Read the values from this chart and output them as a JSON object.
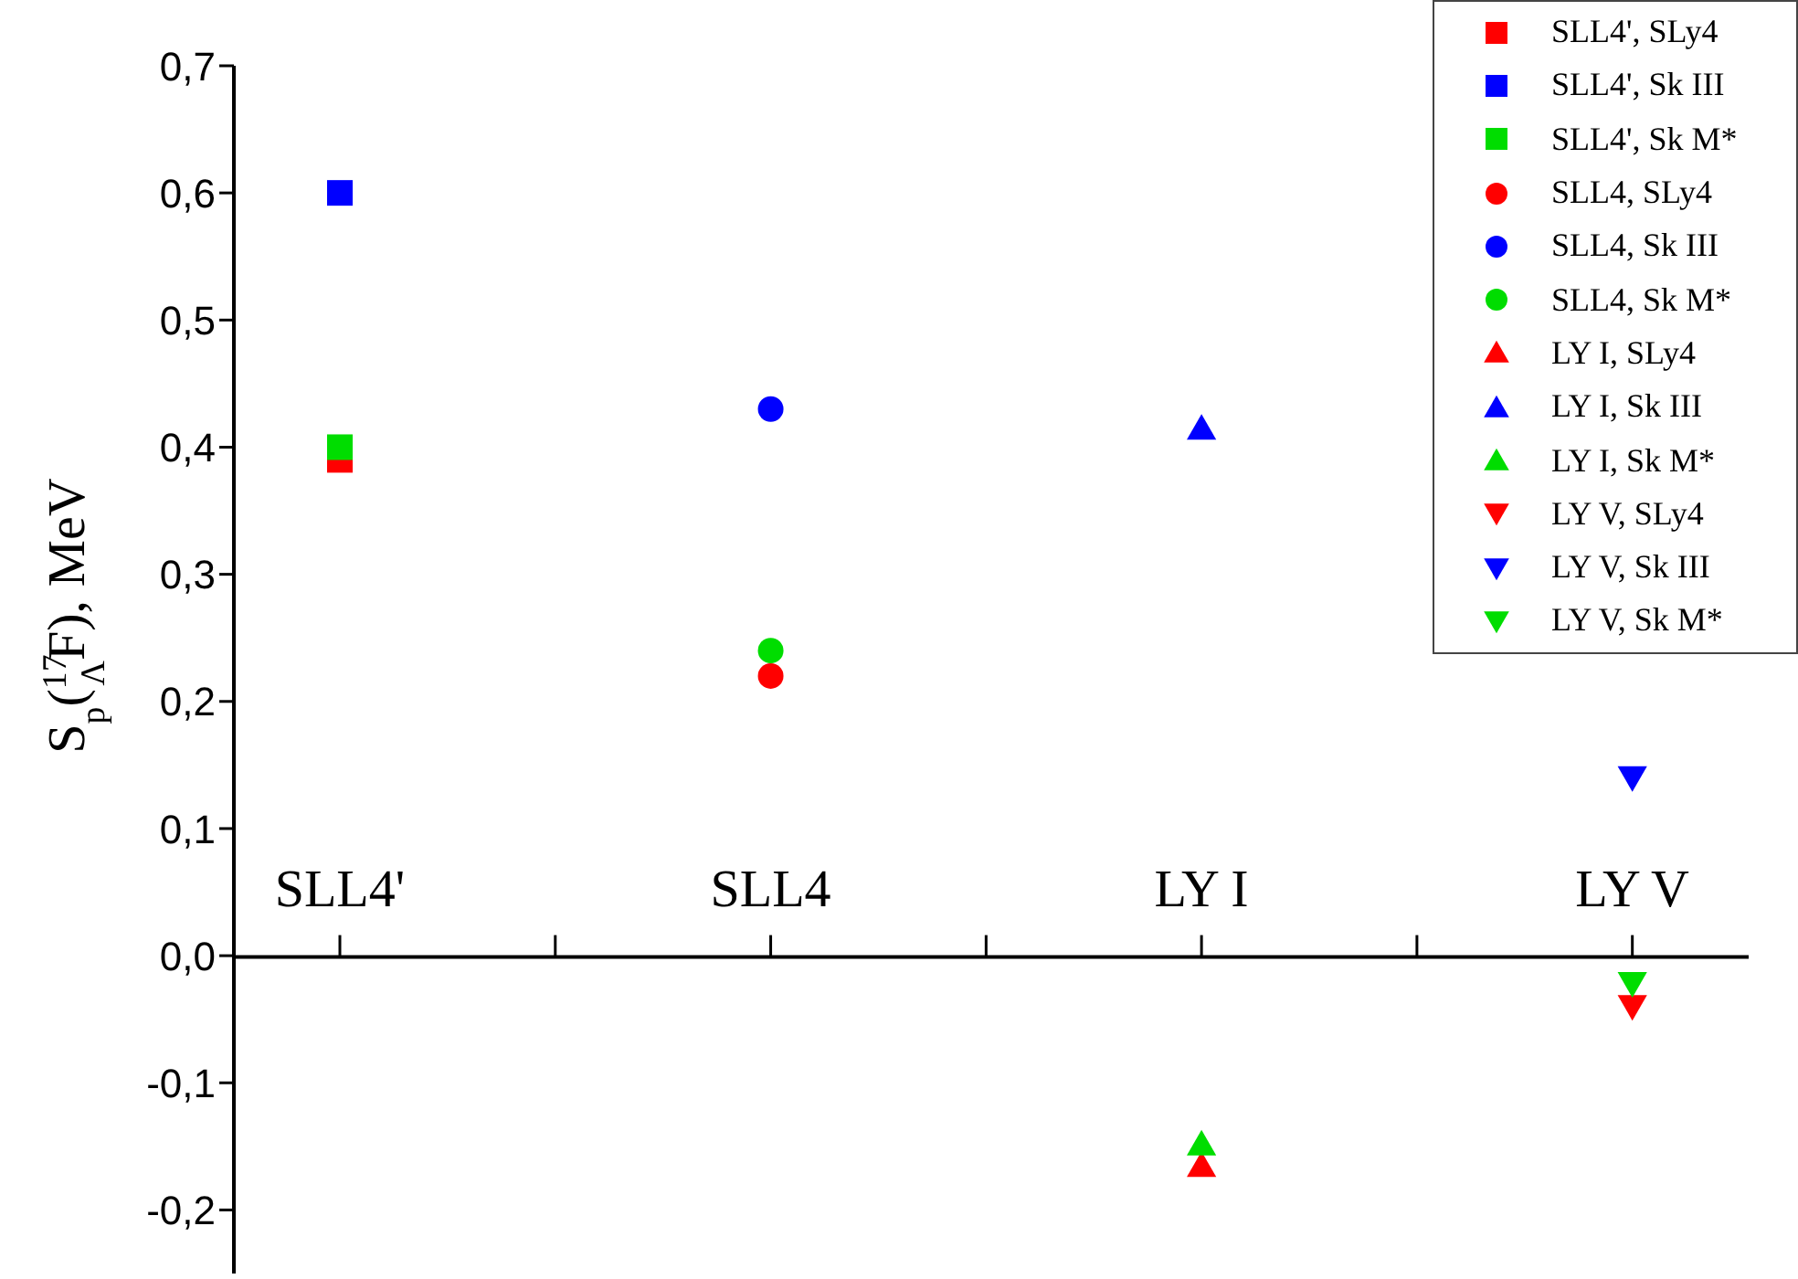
{
  "chart_data": {
    "type": "scatter",
    "ylabel": "S$_{p}$($^{17}$$_{Λ}$F), MeV",
    "categories": [
      "SLL4'",
      "SLL4",
      "LY I",
      "LY V"
    ],
    "ylim": [
      -0.25,
      0.7
    ],
    "yticks": [
      {
        "value": -0.2,
        "label": "-0,2"
      },
      {
        "value": -0.1,
        "label": "-0,1"
      },
      {
        "value": 0,
        "label": "0,0"
      },
      {
        "value": 0.1,
        "label": "0,1"
      },
      {
        "value": 0.2,
        "label": "0,2"
      },
      {
        "value": 0.3,
        "label": "0,3"
      },
      {
        "value": 0.4,
        "label": "0,4"
      },
      {
        "value": 0.5,
        "label": "0,5"
      },
      {
        "value": 0.6,
        "label": "0,6"
      },
      {
        "value": 0.7,
        "label": "0,7"
      }
    ],
    "grid": false,
    "legend": "top right",
    "series": [
      {
        "name": "SLL4', SLy4",
        "color": "#ff0000",
        "marker": "square",
        "x": [
          "SLL4'"
        ],
        "values": [
          0.39
        ]
      },
      {
        "name": "SLL4', Sk III",
        "color": "#0000ff",
        "marker": "square",
        "x": [
          "SLL4'"
        ],
        "values": [
          0.6
        ]
      },
      {
        "name": "SLL4', Sk M*",
        "color": "#00dd00",
        "marker": "square",
        "x": [
          "SLL4'"
        ],
        "values": [
          0.4
        ]
      },
      {
        "name": "SLL4, SLy4",
        "color": "#ff0000",
        "marker": "circle",
        "x": [
          "SLL4"
        ],
        "values": [
          0.22
        ]
      },
      {
        "name": "SLL4, Sk III",
        "color": "#0000ff",
        "marker": "circle",
        "x": [
          "SLL4"
        ],
        "values": [
          0.43
        ]
      },
      {
        "name": "SLL4, Sk M*",
        "color": "#00dd00",
        "marker": "circle",
        "x": [
          "SLL4"
        ],
        "values": [
          0.24
        ]
      },
      {
        "name": "LY I, SLy4",
        "color": "#ff0000",
        "marker": "triangle",
        "x": [
          "LY I"
        ],
        "values": [
          -0.165
        ]
      },
      {
        "name": "LY I, Sk III",
        "color": "#0000ff",
        "marker": "triangle",
        "x": [
          "LY I"
        ],
        "values": [
          0.415
        ]
      },
      {
        "name": "LY I, Sk M*",
        "color": "#00dd00",
        "marker": "triangle",
        "x": [
          "LY I"
        ],
        "values": [
          -0.148
        ]
      },
      {
        "name": "LY V, SLy4",
        "color": "#ff0000",
        "marker": "triangle_down",
        "x": [
          "LY V"
        ],
        "values": [
          -0.04
        ]
      },
      {
        "name": "LY V, Sk III",
        "color": "#0000ff",
        "marker": "triangle_down",
        "x": [
          "LY V"
        ],
        "values": [
          0.14
        ]
      },
      {
        "name": "LY V, Sk M*",
        "color": "#00dd00",
        "marker": "triangle_down",
        "x": [
          "LY V"
        ],
        "values": [
          -0.022
        ]
      }
    ]
  }
}
